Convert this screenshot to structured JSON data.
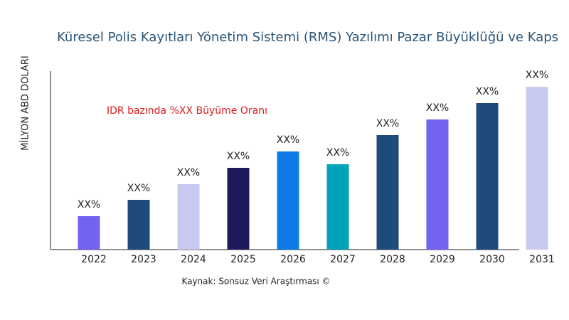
{
  "chart_data": {
    "type": "bar",
    "title": "Küresel Polis Kayıtları Yönetim Sistemi (RMS) Yazılımı Pazar Büyüklüğü ve Kaps",
    "y_label": "MİLYON ABD DOLARI",
    "annotation": "IDR bazında %XX Büyüme Oranı",
    "source": "Kaynak: Sonsuz Veri Araştırması ©",
    "categories": [
      "2022",
      "2023",
      "2024",
      "2025",
      "2026",
      "2027",
      "2028",
      "2029",
      "2030",
      "2031"
    ],
    "values": [
      47,
      70,
      92,
      115,
      138,
      120,
      161,
      183,
      206,
      229
    ],
    "value_labels": [
      "XX%",
      "XX%",
      "XX%",
      "XX%",
      "XX%",
      "XX%",
      "XX%",
      "XX%",
      "XX%",
      "XX%"
    ],
    "colors": [
      "#7263f2",
      "#1f4a7c",
      "#c8c9f0",
      "#1f1a5c",
      "#0f7be8",
      "#02a3b9",
      "#1f4a7c",
      "#7263f2",
      "#1f4a7c",
      "#c8c9f0"
    ],
    "ylim": [
      0,
      251
    ]
  }
}
